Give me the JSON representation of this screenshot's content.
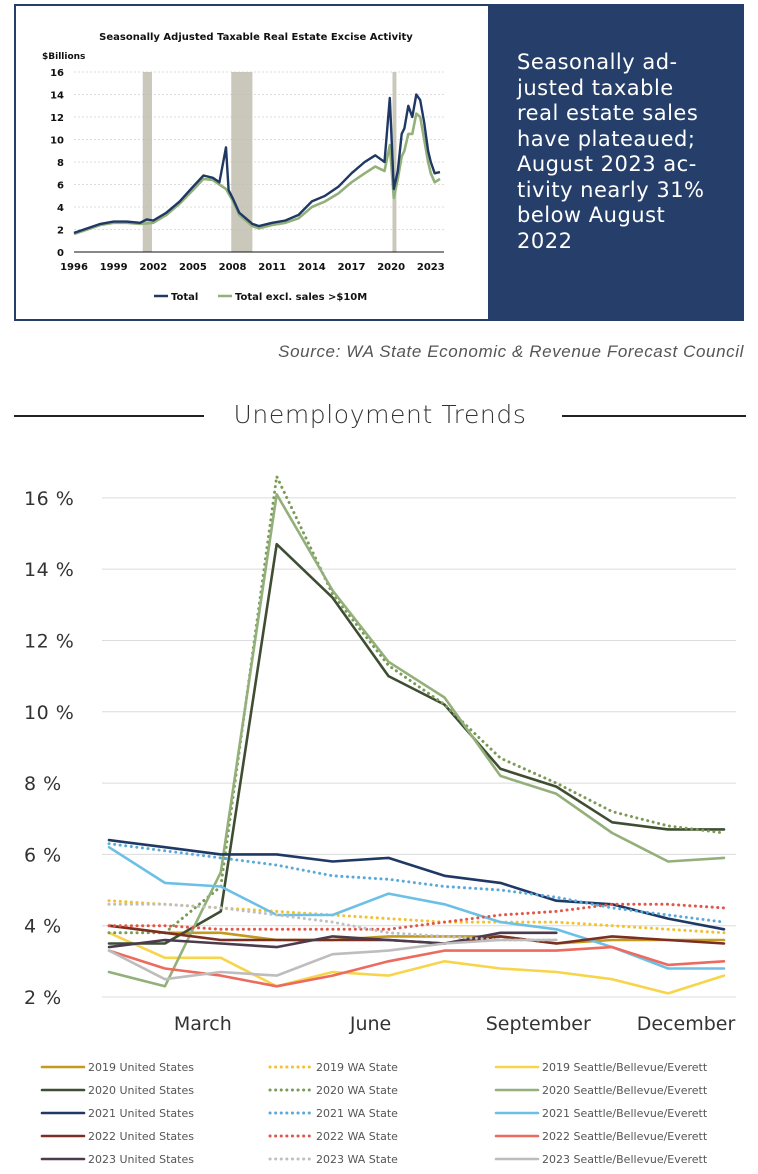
{
  "callout": {
    "text": "Seasonally ad-justed taxable real estate sales have plateaued; August 2023 ac-tivity nearly 31% below August 2022",
    "lines": [
      "Seasonally ad-",
      "justed taxable",
      "real estate sales",
      "have plateaued;",
      "August 2023 ac-",
      "tivity nearly 31%",
      "below August",
      "2022"
    ]
  },
  "source": "Source: WA State Economic & Revenue Forecast Council",
  "section_title": "Unemployment Trends",
  "colors": {
    "navy": "#253f6a",
    "recession": "#c9c8bb",
    "total": "#1f3864",
    "excl": "#93b07a"
  },
  "chart_data": [
    {
      "type": "line",
      "title": "Seasonally Adjusted Taxable Real Estate Excise Activity",
      "ylabel": "$Billions",
      "ylim": [
        0,
        16
      ],
      "yticks": [
        "0",
        "2",
        "4",
        "6",
        "8",
        "10",
        "12",
        "14",
        "16"
      ],
      "xlim": [
        1996,
        2024
      ],
      "xticks": [
        "1996",
        "1999",
        "2002",
        "2005",
        "2008",
        "2011",
        "2014",
        "2017",
        "2020",
        "2023"
      ],
      "recessions": [
        [
          2001.2,
          2001.9
        ],
        [
          2007.9,
          2009.5
        ],
        [
          2020.1,
          2020.4
        ]
      ],
      "legend": "bottom",
      "series": [
        {
          "name": "Total",
          "color": "#1f3864",
          "x": [
            1996,
            1997,
            1998,
            1999,
            2000,
            2001,
            2001.5,
            2002,
            2003,
            2004,
            2005,
            2005.8,
            2006.5,
            2007,
            2007.5,
            2007.7,
            2008,
            2008.5,
            2009,
            2009.5,
            2010,
            2011,
            2012,
            2013,
            2014,
            2015,
            2016,
            2017,
            2018,
            2018.8,
            2019.5,
            2019.9,
            2020.2,
            2020.5,
            2020.8,
            2021,
            2021.3,
            2021.6,
            2021.9,
            2022.2,
            2022.5,
            2022.8,
            2023,
            2023.3,
            2023.7
          ],
          "y": [
            1.7,
            2.1,
            2.5,
            2.7,
            2.7,
            2.6,
            2.9,
            2.8,
            3.5,
            4.5,
            5.8,
            6.8,
            6.6,
            6.2,
            9.3,
            5.5,
            4.8,
            3.5,
            3.0,
            2.5,
            2.3,
            2.6,
            2.8,
            3.3,
            4.5,
            5.0,
            5.8,
            7.0,
            8.0,
            8.6,
            8.0,
            13.7,
            5.6,
            7.2,
            10.5,
            11.0,
            13.0,
            12.0,
            14.0,
            13.5,
            11.5,
            9.0,
            8.0,
            7.0,
            7.1
          ]
        },
        {
          "name": "Total excl. sales >$10M",
          "color": "#93b07a",
          "x": [
            1996,
            1997,
            1998,
            1999,
            2000,
            2001,
            2002,
            2003,
            2004,
            2005,
            2005.8,
            2006.5,
            2007,
            2007.5,
            2008,
            2008.5,
            2009,
            2009.5,
            2010,
            2011,
            2012,
            2013,
            2014,
            2015,
            2016,
            2017,
            2018,
            2018.8,
            2019.5,
            2019.9,
            2020.2,
            2020.5,
            2020.8,
            2021,
            2021.3,
            2021.6,
            2021.9,
            2022.2,
            2022.5,
            2022.8,
            2023,
            2023.3,
            2023.7
          ],
          "y": [
            1.6,
            2.0,
            2.4,
            2.6,
            2.6,
            2.5,
            2.6,
            3.3,
            4.3,
            5.5,
            6.5,
            6.4,
            6.0,
            5.6,
            4.6,
            3.3,
            2.8,
            2.3,
            2.1,
            2.4,
            2.6,
            3.0,
            4.0,
            4.5,
            5.2,
            6.2,
            7.0,
            7.6,
            7.2,
            9.5,
            4.8,
            6.5,
            8.5,
            9.0,
            10.5,
            10.5,
            12.3,
            12.0,
            10.0,
            8.0,
            7.0,
            6.2,
            6.5
          ]
        }
      ]
    },
    {
      "type": "line",
      "title": "",
      "ylim": [
        2,
        16.5
      ],
      "yticks": [
        "2 %",
        "4 %",
        "6 %",
        "8 %",
        "10 %",
        "12 %",
        "14 %",
        "16 %"
      ],
      "ytick_values": [
        2,
        4,
        6,
        8,
        10,
        12,
        14,
        16
      ],
      "xticks": [
        "March",
        "June",
        "September",
        "December"
      ],
      "xtick_months": [
        3,
        6,
        9,
        12
      ],
      "xlim": [
        1,
        12
      ],
      "legend": "bottom",
      "series": [
        {
          "name": "2019 United States",
          "color": "#c39a1d",
          "dash": "solid",
          "x": [
            1,
            2,
            3,
            4,
            5,
            6,
            7,
            8,
            9,
            10,
            11,
            12
          ],
          "y": [
            4.0,
            3.8,
            3.8,
            3.6,
            3.6,
            3.7,
            3.7,
            3.7,
            3.5,
            3.6,
            3.6,
            3.6
          ]
        },
        {
          "name": "2019 WA State",
          "color": "#f2c22e",
          "dash": "dot",
          "x": [
            1,
            2,
            3,
            4,
            5,
            6,
            7,
            8,
            9,
            10,
            11,
            12
          ],
          "y": [
            4.7,
            4.6,
            4.5,
            4.4,
            4.3,
            4.2,
            4.1,
            4.1,
            4.1,
            4.0,
            3.9,
            3.8
          ]
        },
        {
          "name": "2019 Seattle/Bellevue/Everett",
          "color": "#f7d54a",
          "dash": "solid",
          "x": [
            1,
            2,
            3,
            4,
            5,
            6,
            7,
            8,
            9,
            10,
            11,
            12
          ],
          "y": [
            3.8,
            3.1,
            3.1,
            2.3,
            2.7,
            2.6,
            3.0,
            2.8,
            2.7,
            2.5,
            2.1,
            2.6
          ]
        },
        {
          "name": "2020 United States",
          "color": "#3f4e33",
          "dash": "solid",
          "x": [
            1,
            2,
            3,
            4,
            5,
            6,
            7,
            8,
            9,
            10,
            11,
            12
          ],
          "y": [
            3.5,
            3.5,
            4.4,
            14.7,
            13.2,
            11.0,
            10.2,
            8.4,
            7.9,
            6.9,
            6.7,
            6.7
          ]
        },
        {
          "name": "2020 WA State",
          "color": "#7a9a55",
          "dash": "dot",
          "x": [
            1,
            2,
            3,
            4,
            5,
            6,
            7,
            8,
            9,
            10,
            11,
            12
          ],
          "y": [
            3.8,
            3.8,
            5.1,
            16.6,
            13.3,
            11.3,
            10.2,
            8.7,
            8.0,
            7.2,
            6.8,
            6.6
          ]
        },
        {
          "name": "2020 Seattle/Bellevue/Everett",
          "color": "#93b07a",
          "dash": "solid",
          "x": [
            1,
            2,
            3,
            4,
            5,
            6,
            7,
            8,
            9,
            10,
            11,
            12
          ],
          "y": [
            2.7,
            2.3,
            5.5,
            16.1,
            13.4,
            11.4,
            10.4,
            8.2,
            7.7,
            6.6,
            5.8,
            5.9
          ]
        },
        {
          "name": "2021 United States",
          "color": "#1f3864",
          "dash": "solid",
          "x": [
            1,
            2,
            3,
            4,
            5,
            6,
            7,
            8,
            9,
            10,
            11,
            12
          ],
          "y": [
            6.4,
            6.2,
            6.0,
            6.0,
            5.8,
            5.9,
            5.4,
            5.2,
            4.7,
            4.6,
            4.2,
            3.9
          ]
        },
        {
          "name": "2021 WA State",
          "color": "#5aa9d8",
          "dash": "dot",
          "x": [
            1,
            2,
            3,
            4,
            5,
            6,
            7,
            8,
            9,
            10,
            11,
            12
          ],
          "y": [
            6.3,
            6.1,
            5.9,
            5.7,
            5.4,
            5.3,
            5.1,
            5.0,
            4.8,
            4.5,
            4.3,
            4.1
          ]
        },
        {
          "name": "2021 Seattle/Bellevue/Everett",
          "color": "#6cc0e6",
          "dash": "solid",
          "x": [
            1,
            2,
            3,
            4,
            5,
            6,
            7,
            8,
            9,
            10,
            11,
            12
          ],
          "y": [
            6.2,
            5.2,
            5.1,
            4.3,
            4.3,
            4.9,
            4.6,
            4.1,
            3.9,
            3.4,
            2.8,
            2.8
          ]
        },
        {
          "name": "2022 United States",
          "color": "#7b2e22",
          "dash": "solid",
          "x": [
            1,
            2,
            3,
            4,
            5,
            6,
            7,
            8,
            9,
            10,
            11,
            12
          ],
          "y": [
            4.0,
            3.8,
            3.6,
            3.6,
            3.6,
            3.6,
            3.5,
            3.7,
            3.5,
            3.7,
            3.6,
            3.5
          ]
        },
        {
          "name": "2022 WA State",
          "color": "#e0574a",
          "dash": "dot",
          "x": [
            1,
            2,
            3,
            4,
            5,
            6,
            7,
            8,
            9,
            10,
            11,
            12
          ],
          "y": [
            4.0,
            4.0,
            3.9,
            3.9,
            3.9,
            3.9,
            4.1,
            4.3,
            4.4,
            4.6,
            4.6,
            4.5
          ]
        },
        {
          "name": "2022 Seattle/Bellevue/Everett",
          "color": "#ec6a5e",
          "dash": "solid",
          "x": [
            1,
            2,
            3,
            4,
            5,
            6,
            7,
            8,
            9,
            10,
            11,
            12
          ],
          "y": [
            3.3,
            2.8,
            2.6,
            2.3,
            2.6,
            3.0,
            3.3,
            3.3,
            3.3,
            3.4,
            2.9,
            3.0
          ]
        },
        {
          "name": "2023 United States",
          "color": "#4b3b4d",
          "dash": "solid",
          "x": [
            1,
            2,
            3,
            4,
            5,
            6,
            7,
            8,
            9
          ],
          "y": [
            3.4,
            3.6,
            3.5,
            3.4,
            3.7,
            3.6,
            3.5,
            3.8,
            3.8
          ]
        },
        {
          "name": "2023 WA State",
          "color": "#bfbfbf",
          "dash": "dot",
          "x": [
            1,
            2,
            3,
            4,
            5,
            6,
            7,
            8,
            9
          ],
          "y": [
            4.6,
            4.6,
            4.5,
            4.3,
            4.1,
            3.8,
            3.7,
            3.6,
            3.6
          ]
        },
        {
          "name": "2023 Seattle/Bellevue/Everett",
          "color": "#bdbdbd",
          "dash": "solid",
          "x": [
            1,
            2,
            3,
            4,
            5,
            6,
            7,
            8,
            9
          ],
          "y": [
            3.3,
            2.5,
            2.7,
            2.6,
            3.2,
            3.3,
            3.5,
            3.6,
            3.6
          ]
        }
      ]
    }
  ]
}
